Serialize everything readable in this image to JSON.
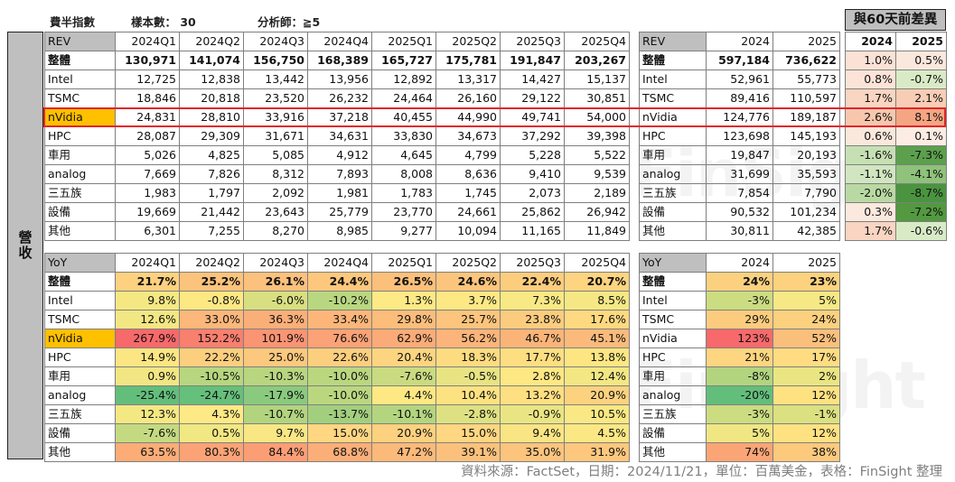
{
  "meta": {
    "title": "費半指數",
    "sample": "樣本數： 30",
    "analysts": "分析師：≧5"
  },
  "side_label": "營收",
  "watermark": "FinSight",
  "diff_header": "與60天前差異",
  "footer": "資料來源：FactSet，日期：2024/11/21，單位：百萬美金，表格：FinSight 整理",
  "highlight_color": "#ffc000",
  "highlight_border": "#e3242b",
  "rev_q": {
    "header": [
      "REV",
      "2024Q1",
      "2024Q2",
      "2024Q3",
      "2024Q4",
      "2025Q1",
      "2025Q2",
      "2025Q3",
      "2025Q4"
    ],
    "rows": [
      [
        "整體",
        "130,971",
        "141,074",
        "156,750",
        "168,389",
        "165,727",
        "175,781",
        "191,847",
        "203,267"
      ],
      [
        "Intel",
        "12,725",
        "12,838",
        "13,442",
        "13,956",
        "12,892",
        "13,317",
        "14,427",
        "15,137"
      ],
      [
        "TSMC",
        "18,846",
        "20,818",
        "23,520",
        "26,232",
        "24,464",
        "26,160",
        "29,122",
        "30,851"
      ],
      [
        "nVidia",
        "24,831",
        "28,810",
        "33,916",
        "37,218",
        "40,455",
        "44,990",
        "49,741",
        "54,000"
      ],
      [
        "HPC",
        "28,087",
        "29,309",
        "31,671",
        "34,631",
        "33,830",
        "34,673",
        "37,292",
        "39,398"
      ],
      [
        "車用",
        "5,026",
        "4,825",
        "5,085",
        "4,912",
        "4,645",
        "4,799",
        "5,228",
        "5,522"
      ],
      [
        "analog",
        "7,669",
        "7,826",
        "8,312",
        "7,893",
        "8,008",
        "8,636",
        "9,410",
        "9,539"
      ],
      [
        "三五族",
        "1,983",
        "1,797",
        "2,092",
        "1,981",
        "1,783",
        "1,745",
        "2,073",
        "2,189"
      ],
      [
        "設備",
        "19,669",
        "21,442",
        "23,643",
        "25,779",
        "23,770",
        "24,661",
        "25,862",
        "26,942"
      ],
      [
        "其他",
        "6,301",
        "7,255",
        "8,270",
        "8,985",
        "9,277",
        "10,094",
        "11,165",
        "11,849"
      ]
    ]
  },
  "rev_y": {
    "header": [
      "REV",
      "2024",
      "2025"
    ],
    "rows": [
      [
        "整體",
        "597,184",
        "736,622"
      ],
      [
        "Intel",
        "52,961",
        "55,773"
      ],
      [
        "TSMC",
        "89,416",
        "110,597"
      ],
      [
        "nVidia",
        "124,776",
        "189,187"
      ],
      [
        "HPC",
        "123,698",
        "145,193"
      ],
      [
        "車用",
        "19,847",
        "20,193"
      ],
      [
        "analog",
        "31,699",
        "35,593"
      ],
      [
        "三五族",
        "7,854",
        "7,790"
      ],
      [
        "設備",
        "90,532",
        "101,234"
      ],
      [
        "其他",
        "30,811",
        "42,385"
      ]
    ]
  },
  "diff": {
    "header": [
      "2024",
      "2025"
    ],
    "rows": [
      [
        "1.0%",
        "0.5%"
      ],
      [
        "0.8%",
        "-0.7%"
      ],
      [
        "1.7%",
        "2.1%"
      ],
      [
        "2.6%",
        "8.1%"
      ],
      [
        "0.6%",
        "0.1%"
      ],
      [
        "-1.6%",
        "-7.3%"
      ],
      [
        "-1.1%",
        "-4.1%"
      ],
      [
        "-2.0%",
        "-8.7%"
      ],
      [
        "0.3%",
        "-7.2%"
      ],
      [
        "1.7%",
        "-0.6%"
      ]
    ],
    "colors": [
      [
        "#fbe2d5",
        "#fbe8dc"
      ],
      [
        "#fbe4d7",
        "#d9ebc6"
      ],
      [
        "#f9d5c2",
        "#f8cdb6"
      ],
      [
        "#f7c7ad",
        "#f4a582"
      ],
      [
        "#fbe8dc",
        "#fcece2"
      ],
      [
        "#c6e0b4",
        "#5ca04d"
      ],
      [
        "#d1e6c0",
        "#8fc27a"
      ],
      [
        "#b9d9a3",
        "#4a9440"
      ],
      [
        "#fbe9de",
        "#52993f"
      ],
      [
        "#f9d5c2",
        "#d9ebc6"
      ]
    ]
  },
  "yoy_q": {
    "header": [
      "YoY",
      "2024Q1",
      "2024Q2",
      "2024Q3",
      "2024Q4",
      "2025Q1",
      "2025Q2",
      "2025Q3",
      "2025Q4"
    ],
    "rows": [
      [
        "整體",
        "21.7%",
        "25.2%",
        "26.1%",
        "24.4%",
        "26.5%",
        "24.6%",
        "22.4%",
        "20.7%"
      ],
      [
        "Intel",
        "9.8%",
        "-0.8%",
        "-6.0%",
        "-10.2%",
        "1.3%",
        "3.7%",
        "7.3%",
        "8.5%"
      ],
      [
        "TSMC",
        "12.6%",
        "33.0%",
        "36.3%",
        "33.4%",
        "29.8%",
        "25.7%",
        "23.8%",
        "17.6%"
      ],
      [
        "nVidia",
        "267.9%",
        "152.2%",
        "101.9%",
        "76.6%",
        "62.9%",
        "56.2%",
        "46.7%",
        "45.1%"
      ],
      [
        "HPC",
        "14.9%",
        "22.2%",
        "25.0%",
        "22.6%",
        "20.4%",
        "18.3%",
        "17.7%",
        "13.8%"
      ],
      [
        "車用",
        "0.9%",
        "-10.5%",
        "-10.3%",
        "-10.0%",
        "-7.6%",
        "-0.5%",
        "2.8%",
        "12.4%"
      ],
      [
        "analog",
        "-25.4%",
        "-24.7%",
        "-17.9%",
        "-10.0%",
        "4.4%",
        "10.4%",
        "13.2%",
        "20.9%"
      ],
      [
        "三五族",
        "12.3%",
        "4.3%",
        "-10.7%",
        "-13.7%",
        "-10.1%",
        "-2.8%",
        "-0.9%",
        "10.5%"
      ],
      [
        "設備",
        "-7.6%",
        "0.5%",
        "9.7%",
        "15.0%",
        "20.9%",
        "15.0%",
        "9.4%",
        "4.5%"
      ],
      [
        "其他",
        "63.5%",
        "80.3%",
        "84.4%",
        "68.8%",
        "47.2%",
        "39.1%",
        "35.0%",
        "31.9%"
      ]
    ],
    "colors": [
      [
        "#fdd17f",
        "#fcc37c",
        "#fcc17c",
        "#fdc87d",
        "#fcc07b",
        "#fcc57d",
        "#fdcd7e",
        "#fed480"
      ],
      [
        "#f5e883",
        "#fee884",
        "#d8df81",
        "#b9d780",
        "#fde985",
        "#fde884",
        "#f8e984",
        "#f5e884"
      ],
      [
        "#f2e783",
        "#fcb77a",
        "#fbaf78",
        "#fcb67a",
        "#fcbd7b",
        "#fcc47d",
        "#fccc7e",
        "#fed980"
      ],
      [
        "#f8696b",
        "#f97f6f",
        "#fa9473",
        "#fba276",
        "#fbab77",
        "#fcb47a",
        "#fbb478",
        "#fbba7b"
      ],
      [
        "#fbe683",
        "#fccf7f",
        "#fcc87d",
        "#fccf7f",
        "#fdd580",
        "#fddb81",
        "#fdde81",
        "#fde682"
      ],
      [
        "#f1e683",
        "#b7d67f",
        "#b8d67f",
        "#bad780",
        "#c9db81",
        "#e8e383",
        "#fee883",
        "#f2e783"
      ],
      [
        "#63be7b",
        "#66bf7b",
        "#8aca7e",
        "#bad780",
        "#fde883",
        "#fde282",
        "#fedf82",
        "#fcd27f"
      ],
      [
        "#f4e883",
        "#fde985",
        "#b2d47f",
        "#a2cf7e",
        "#b4d57f",
        "#dee182",
        "#eae583",
        "#f9e883"
      ],
      [
        "#c4da81",
        "#f1e783",
        "#f8e784",
        "#ffd681",
        "#fcd17f",
        "#ffd681",
        "#f9e583",
        "#fbe784"
      ],
      [
        "#fbac77",
        "#fba376",
        "#fb9e75",
        "#fbae78",
        "#fbb97a",
        "#fbc17c",
        "#fcc47d",
        "#fdc87d"
      ]
    ]
  },
  "yoy_y": {
    "header": [
      "YoY",
      "2024",
      "2025"
    ],
    "rows": [
      [
        "整體",
        "24%",
        "23%"
      ],
      [
        "Intel",
        "-3%",
        "5%"
      ],
      [
        "TSMC",
        "29%",
        "24%"
      ],
      [
        "nVidia",
        "123%",
        "52%"
      ],
      [
        "HPC",
        "21%",
        "17%"
      ],
      [
        "車用",
        "-8%",
        "2%"
      ],
      [
        "analog",
        "-20%",
        "12%"
      ],
      [
        "三五族",
        "-3%",
        "-1%"
      ],
      [
        "設備",
        "5%",
        "12%"
      ],
      [
        "其他",
        "74%",
        "38%"
      ]
    ],
    "colors": [
      [
        "#fbd17f",
        "#fcd27f"
      ],
      [
        "#cbdc81",
        "#f6e884"
      ],
      [
        "#fccc7e",
        "#fbd07f"
      ],
      [
        "#f8696b",
        "#fbbf7c"
      ],
      [
        "#fed580",
        "#ffdc81"
      ],
      [
        "#b2d47f",
        "#eae583"
      ],
      [
        "#63be7b",
        "#fee282"
      ],
      [
        "#cbdc81",
        "#dbe081"
      ],
      [
        "#f0e683",
        "#fee282"
      ],
      [
        "#fba576",
        "#fcc97d"
      ]
    ]
  }
}
